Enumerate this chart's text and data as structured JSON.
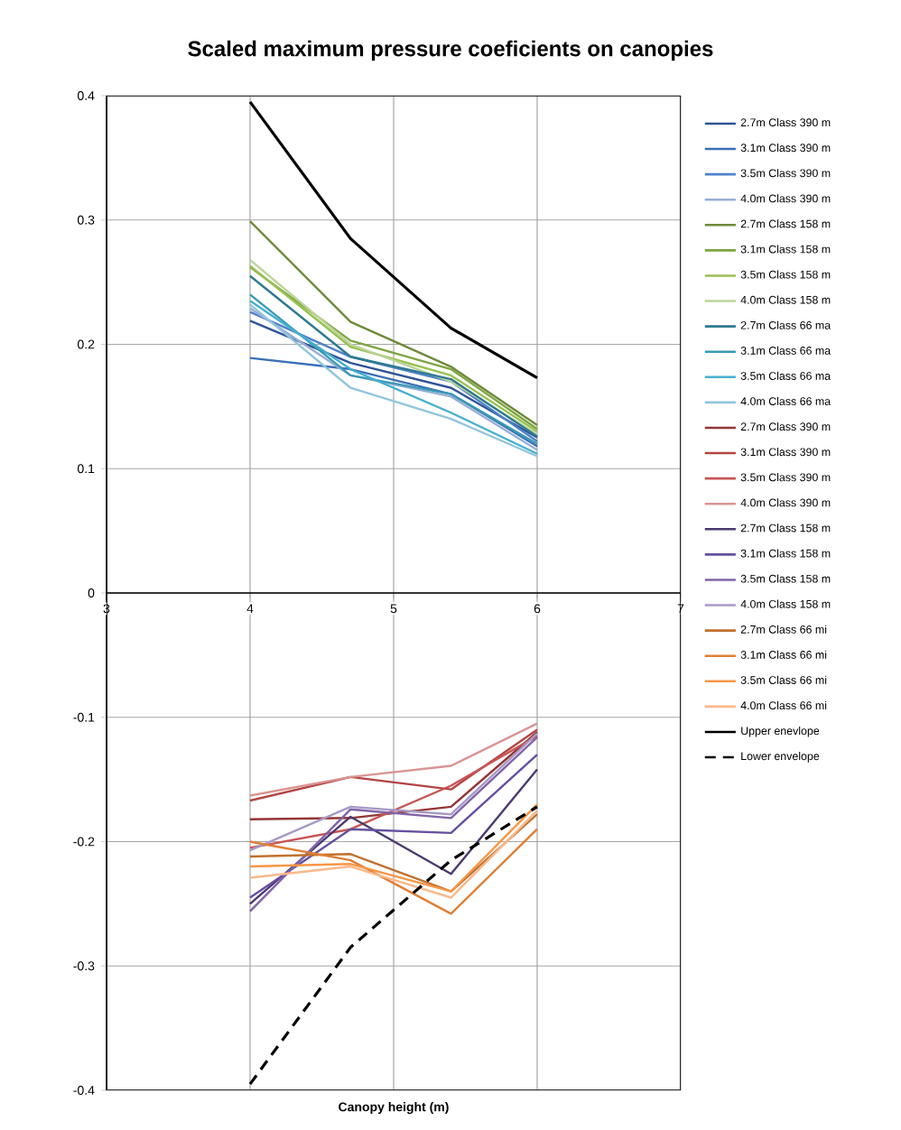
{
  "chart_data": {
    "type": "line",
    "title": "Scaled maximum pressure coeficients on canopies",
    "xlabel": "Canopy height (m)",
    "x": [
      4,
      4.7,
      5.4,
      6
    ],
    "xlim": [
      3,
      7
    ],
    "xticks": [
      3,
      4,
      5,
      6,
      7
    ],
    "ylim": [
      -0.4,
      0.4
    ],
    "yticks": [
      -0.4,
      -0.3,
      -0.2,
      -0.1,
      0,
      0.1,
      0.2,
      0.3,
      0.4
    ],
    "grid": true,
    "legend": "right",
    "marker": "none",
    "line_style": "solid",
    "series": [
      {
        "name": "2.7m Class 390 m",
        "color": "#2f5597",
        "values": [
          0.219,
          0.185,
          0.165,
          0.125
        ]
      },
      {
        "name": "3.1m Class 390 m",
        "color": "#3a6fb8",
        "values": [
          0.189,
          0.18,
          0.16,
          0.118
        ]
      },
      {
        "name": "3.5m Class 390 m",
        "color": "#4f81c9",
        "values": [
          0.226,
          0.19,
          0.17,
          0.122
        ]
      },
      {
        "name": "4.0m Class 390 m",
        "color": "#98afd6",
        "values": [
          0.229,
          0.175,
          0.158,
          0.115
        ]
      },
      {
        "name": "2.7m Class 158 m",
        "color": "#6f8a3a",
        "values": [
          0.299,
          0.218,
          0.182,
          0.135
        ]
      },
      {
        "name": "3.1m Class 158 m",
        "color": "#7ea542",
        "values": [
          0.262,
          0.203,
          0.18,
          0.132
        ]
      },
      {
        "name": "3.5m Class 158 m",
        "color": "#98c14f",
        "values": [
          0.263,
          0.198,
          0.175,
          0.13
        ]
      },
      {
        "name": "4.0m Class 158 m",
        "color": "#bcd49a",
        "values": [
          0.268,
          0.2,
          0.17,
          0.128
        ]
      },
      {
        "name": "2.7m Class 66 ma",
        "color": "#2d7a91",
        "values": [
          0.255,
          0.19,
          0.172,
          0.126
        ]
      },
      {
        "name": "3.1m Class 66 ma",
        "color": "#3a9ab4",
        "values": [
          0.24,
          0.175,
          0.16,
          0.12
        ]
      },
      {
        "name": "3.5m Class 66 ma",
        "color": "#45b0cf",
        "values": [
          0.235,
          0.18,
          0.145,
          0.112
        ]
      },
      {
        "name": "4.0m Class 66 ma",
        "color": "#92c5dc",
        "values": [
          0.232,
          0.165,
          0.14,
          0.11
        ]
      },
      {
        "name": "2.7m Class 390 m",
        "color": "#943634",
        "values": [
          -0.182,
          -0.181,
          -0.172,
          -0.112
        ]
      },
      {
        "name": "3.1m Class 390 m",
        "color": "#b54545",
        "values": [
          -0.167,
          -0.148,
          -0.158,
          -0.11
        ]
      },
      {
        "name": "3.5m Class 390 m",
        "color": "#c85555",
        "values": [
          -0.205,
          -0.19,
          -0.155,
          -0.115
        ]
      },
      {
        "name": "4.0m Class 390 m",
        "color": "#d99594",
        "values": [
          -0.163,
          -0.148,
          -0.139,
          -0.105
        ]
      },
      {
        "name": "2.7m Class 158 m",
        "color": "#4b3a70",
        "values": [
          -0.25,
          -0.18,
          -0.226,
          -0.142
        ]
      },
      {
        "name": "3.1m Class 158 m",
        "color": "#6650a0",
        "values": [
          -0.245,
          -0.19,
          -0.193,
          -0.13
        ]
      },
      {
        "name": "3.5m Class 158 m",
        "color": "#8064a8",
        "values": [
          -0.256,
          -0.174,
          -0.181,
          -0.116
        ]
      },
      {
        "name": "4.0m Class 158 m",
        "color": "#a899c6",
        "values": [
          -0.207,
          -0.172,
          -0.178,
          -0.113
        ]
      },
      {
        "name": "2.7m Class 66 mi",
        "color": "#c0712f",
        "values": [
          -0.212,
          -0.21,
          -0.24,
          -0.178
        ]
      },
      {
        "name": "3.1m Class 66 mi",
        "color": "#e07f34",
        "values": [
          -0.2,
          -0.215,
          -0.258,
          -0.19
        ]
      },
      {
        "name": "3.5m Class 66 mi",
        "color": "#f79646",
        "values": [
          -0.22,
          -0.218,
          -0.24,
          -0.17
        ]
      },
      {
        "name": "4.0m Class 66 mi",
        "color": "#fab98a",
        "values": [
          -0.229,
          -0.22,
          -0.245,
          -0.175
        ]
      },
      {
        "name": "Upper enevlope",
        "color": "#000000",
        "values": [
          0.395,
          0.285,
          0.213,
          0.173
        ]
      },
      {
        "name": "Lower envelope",
        "color": "#000000",
        "line_style": "dashed",
        "values": [
          -0.395,
          -0.285,
          -0.215,
          -0.172
        ]
      }
    ]
  }
}
